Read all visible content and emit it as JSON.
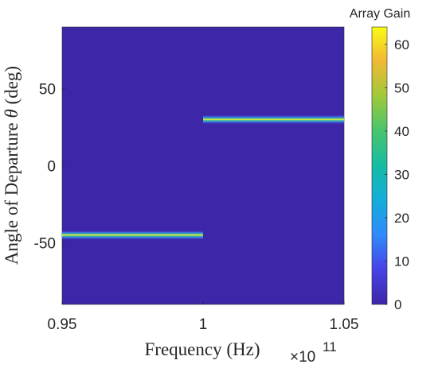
{
  "chart_data": {
    "type": "heatmap",
    "xlabel": "Frequency (Hz)",
    "ylabel_main": "Angle of Departure ",
    "ylabel_symbol": "θ",
    "ylabel_unit": " (deg)",
    "x_exponent_base": "×10",
    "x_exponent_power": "11",
    "xlim": [
      95000000000.0,
      105000000000.0
    ],
    "ylim": [
      -90,
      90
    ],
    "x_ticks": [
      {
        "value": 95000000000.0,
        "label": "0.95"
      },
      {
        "value": 100000000000.0,
        "label": "1"
      },
      {
        "value": 105000000000.0,
        "label": "1.05"
      }
    ],
    "y_ticks": [
      {
        "value": 50,
        "label": "50"
      },
      {
        "value": 0,
        "label": "0"
      },
      {
        "value": -50,
        "label": "-50"
      }
    ],
    "background_gain": 0,
    "segments": [
      {
        "x_start": 95000000000.0,
        "x_end": 100000000000.0,
        "angle_deg": -45,
        "peak_gain": 64
      },
      {
        "x_start": 100000000000.0,
        "x_end": 105000000000.0,
        "angle_deg": 30,
        "peak_gain": 64
      }
    ],
    "colorbar": {
      "title": "Array Gain",
      "range": [
        0,
        64
      ],
      "ticks": [
        0,
        10,
        20,
        30,
        40,
        50,
        60
      ],
      "colormap": "parula"
    },
    "colors": {
      "low": "#3e26a8",
      "axis": "#262626"
    }
  }
}
